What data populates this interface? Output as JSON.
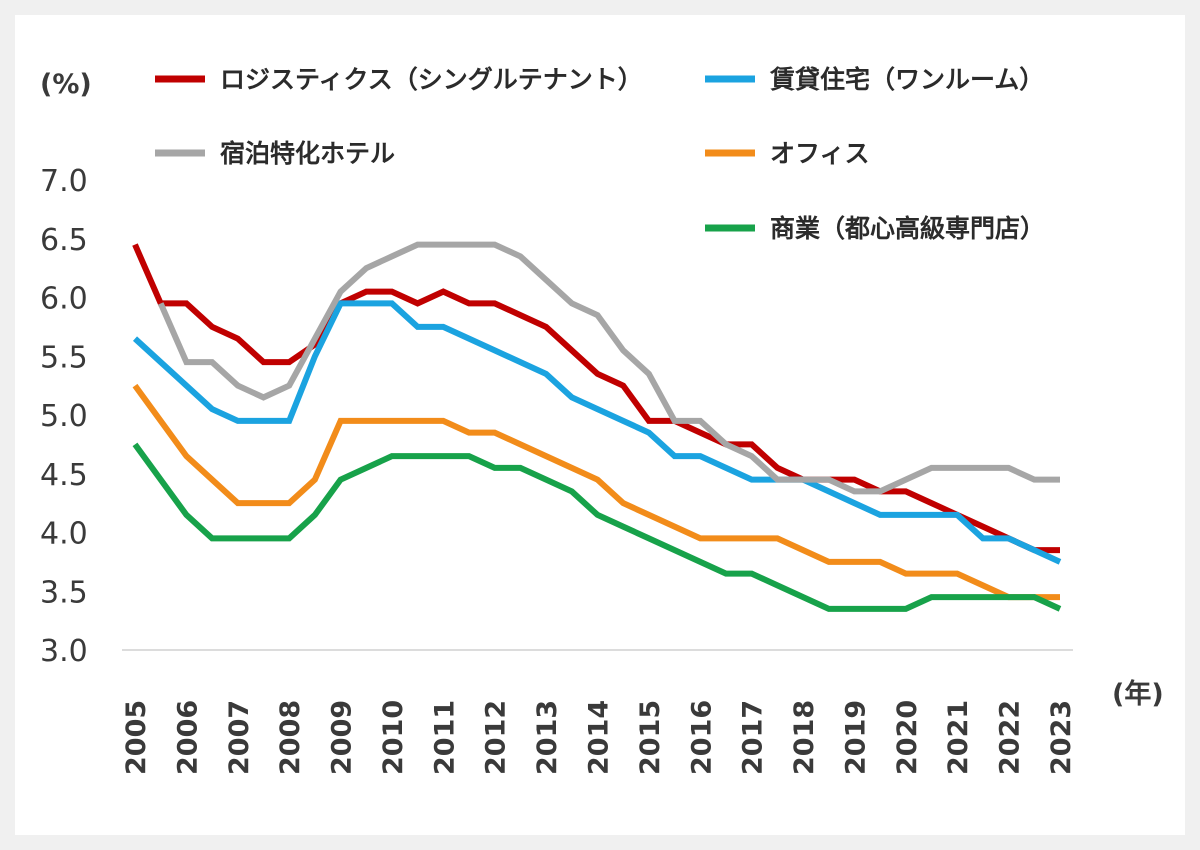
{
  "chart_data": {
    "type": "line",
    "y_unit": "(%)",
    "x_unit": "(年)",
    "ylim": [
      3.0,
      7.0
    ],
    "y_ticks": [
      "3.0",
      "3.5",
      "4.0",
      "4.5",
      "5.0",
      "5.5",
      "6.0",
      "6.5",
      "7.0"
    ],
    "x_tick_labels": [
      "2005",
      "2006",
      "2007",
      "2008",
      "2009",
      "2010",
      "2011",
      "2012",
      "2013",
      "2014",
      "2015",
      "2016",
      "2017",
      "2018",
      "2019",
      "2020",
      "2021",
      "2022",
      "2023"
    ],
    "x": [
      2005.0,
      2005.5,
      2006.0,
      2006.5,
      2007.0,
      2007.5,
      2008.0,
      2008.5,
      2009.0,
      2009.5,
      2010.0,
      2010.5,
      2011.0,
      2011.5,
      2012.0,
      2012.5,
      2013.0,
      2013.5,
      2014.0,
      2014.5,
      2015.0,
      2015.5,
      2016.0,
      2016.5,
      2017.0,
      2017.5,
      2018.0,
      2018.5,
      2019.0,
      2019.5,
      2020.0,
      2020.5,
      2021.0,
      2021.5,
      2022.0,
      2022.5,
      2023.0
    ],
    "series": [
      {
        "name": "ロジスティクス（シングルテナント）",
        "color": "#c00000",
        "values": [
          6.45,
          5.95,
          5.95,
          5.75,
          5.65,
          5.45,
          5.45,
          5.6,
          5.95,
          6.05,
          6.05,
          5.95,
          6.05,
          5.95,
          5.95,
          5.85,
          5.75,
          5.55,
          5.35,
          5.25,
          4.95,
          4.95,
          4.85,
          4.75,
          4.75,
          4.55,
          4.45,
          4.45,
          4.45,
          4.35,
          4.35,
          4.25,
          4.15,
          4.05,
          3.95,
          3.85,
          3.85
        ]
      },
      {
        "name": "賃貸住宅（ワンルーム）",
        "color": "#1ba3e0",
        "values": [
          5.65,
          5.45,
          5.25,
          5.05,
          4.95,
          4.95,
          4.95,
          5.5,
          5.95,
          5.95,
          5.95,
          5.75,
          5.75,
          5.65,
          5.55,
          5.45,
          5.35,
          5.15,
          5.05,
          4.95,
          4.85,
          4.65,
          4.65,
          4.55,
          4.45,
          4.45,
          4.45,
          4.35,
          4.25,
          4.15,
          4.15,
          4.15,
          4.15,
          3.95,
          3.95,
          3.85,
          3.75
        ]
      },
      {
        "name": "宿泊特化ホテル",
        "color": "#a6a6a6",
        "values": [
          null,
          5.95,
          5.45,
          5.45,
          5.25,
          5.15,
          5.25,
          5.65,
          6.05,
          6.25,
          6.35,
          6.45,
          6.45,
          6.45,
          6.45,
          6.35,
          6.15,
          5.95,
          5.85,
          5.55,
          5.35,
          4.95,
          4.95,
          4.75,
          4.65,
          4.45,
          4.45,
          4.45,
          4.35,
          4.35,
          4.45,
          4.55,
          4.55,
          4.55,
          4.55,
          4.45,
          4.45
        ]
      },
      {
        "name": "オフィス",
        "color": "#f28c1a",
        "values": [
          5.25,
          4.95,
          4.65,
          4.45,
          4.25,
          4.25,
          4.25,
          4.45,
          4.95,
          4.95,
          4.95,
          4.95,
          4.95,
          4.85,
          4.85,
          4.75,
          4.65,
          4.55,
          4.45,
          4.25,
          4.15,
          4.05,
          3.95,
          3.95,
          3.95,
          3.95,
          3.85,
          3.75,
          3.75,
          3.75,
          3.65,
          3.65,
          3.65,
          3.55,
          3.45,
          3.45,
          3.45
        ]
      },
      {
        "name": "商業（都心高級専門店）",
        "color": "#17a24a",
        "values": [
          4.75,
          4.45,
          4.15,
          3.95,
          3.95,
          3.95,
          3.95,
          4.15,
          4.45,
          4.55,
          4.65,
          4.65,
          4.65,
          4.65,
          4.55,
          4.55,
          4.45,
          4.35,
          4.15,
          4.05,
          3.95,
          3.85,
          3.75,
          3.65,
          3.65,
          3.55,
          3.45,
          3.35,
          3.35,
          3.35,
          3.35,
          3.45,
          3.45,
          3.45,
          3.45,
          3.45,
          3.35
        ]
      }
    ]
  }
}
